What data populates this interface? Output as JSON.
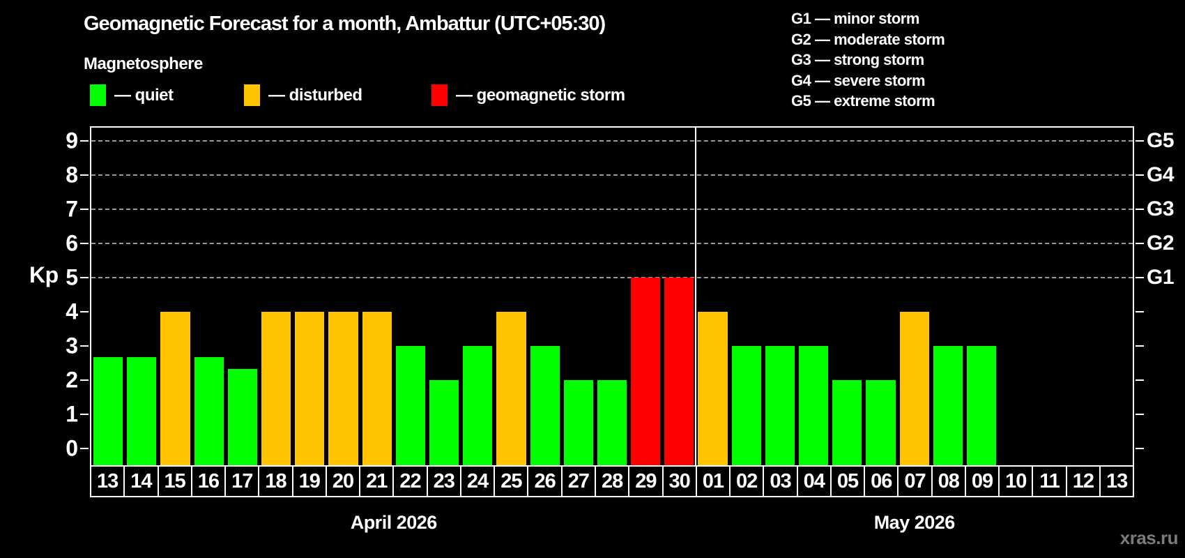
{
  "header": {
    "title": "Geomagnetic Forecast for a month, Ambattur (UTC+05:30)",
    "subtitle": "Magnetosphere"
  },
  "legend": {
    "items": [
      {
        "label": "— quiet",
        "status": "quiet"
      },
      {
        "label": "— disturbed",
        "status": "disturbed"
      },
      {
        "label": "— geomagnetic storm",
        "status": "storm"
      }
    ]
  },
  "g_legend": {
    "items": [
      "G1 — minor storm",
      "G2 — moderate storm",
      "G3 — strong storm",
      "G4 — severe storm",
      "G5 — extreme storm"
    ]
  },
  "footer": {
    "watermark": "xras.ru"
  },
  "chart_data": {
    "type": "bar",
    "title": "Geomagnetic Forecast for a month, Ambattur (UTC+05:30)",
    "ylabel": "Kp",
    "ylim": [
      0,
      9
    ],
    "y_ticks": [
      0,
      1,
      2,
      3,
      4,
      5,
      6,
      7,
      8,
      9
    ],
    "grid": "dashed horizontal lines at Kp 5 through 9",
    "grid_values": [
      5,
      6,
      7,
      8,
      9
    ],
    "right_axis_labels": [
      {
        "label": "G1",
        "value": 5
      },
      {
        "label": "G2",
        "value": 6
      },
      {
        "label": "G3",
        "value": 7
      },
      {
        "label": "G4",
        "value": 8
      },
      {
        "label": "G5",
        "value": 9
      }
    ],
    "status_colors": {
      "quiet": "#00ff00",
      "disturbed": "#ffc300",
      "storm": "#ff0000"
    },
    "months": [
      {
        "label": "April 2026",
        "points": [
          {
            "day": "13",
            "value": 2.67,
            "status": "quiet"
          },
          {
            "day": "14",
            "value": 2.67,
            "status": "quiet"
          },
          {
            "day": "15",
            "value": 4,
            "status": "disturbed"
          },
          {
            "day": "16",
            "value": 2.67,
            "status": "quiet"
          },
          {
            "day": "17",
            "value": 2.33,
            "status": "quiet"
          },
          {
            "day": "18",
            "value": 4,
            "status": "disturbed"
          },
          {
            "day": "19",
            "value": 4,
            "status": "disturbed"
          },
          {
            "day": "20",
            "value": 4,
            "status": "disturbed"
          },
          {
            "day": "21",
            "value": 4,
            "status": "disturbed"
          },
          {
            "day": "22",
            "value": 3,
            "status": "quiet"
          },
          {
            "day": "23",
            "value": 2,
            "status": "quiet"
          },
          {
            "day": "24",
            "value": 3,
            "status": "quiet"
          },
          {
            "day": "25",
            "value": 4,
            "status": "disturbed"
          },
          {
            "day": "26",
            "value": 3,
            "status": "quiet"
          },
          {
            "day": "27",
            "value": 2,
            "status": "quiet"
          },
          {
            "day": "28",
            "value": 2,
            "status": "quiet"
          },
          {
            "day": "29",
            "value": 5,
            "status": "storm"
          },
          {
            "day": "30",
            "value": 5,
            "status": "storm"
          }
        ]
      },
      {
        "label": "May 2026",
        "points": [
          {
            "day": "01",
            "value": 4,
            "status": "disturbed"
          },
          {
            "day": "02",
            "value": 3,
            "status": "quiet"
          },
          {
            "day": "03",
            "value": 3,
            "status": "quiet"
          },
          {
            "day": "04",
            "value": 3,
            "status": "quiet"
          },
          {
            "day": "05",
            "value": 2,
            "status": "quiet"
          },
          {
            "day": "06",
            "value": 2,
            "status": "quiet"
          },
          {
            "day": "07",
            "value": 4,
            "status": "disturbed"
          },
          {
            "day": "08",
            "value": 3,
            "status": "quiet"
          },
          {
            "day": "09",
            "value": 3,
            "status": "quiet"
          },
          {
            "day": "10",
            "value": null,
            "status": "none"
          },
          {
            "day": "11",
            "value": null,
            "status": "none"
          },
          {
            "day": "12",
            "value": null,
            "status": "none"
          },
          {
            "day": "13",
            "value": null,
            "status": "none"
          }
        ]
      }
    ]
  }
}
